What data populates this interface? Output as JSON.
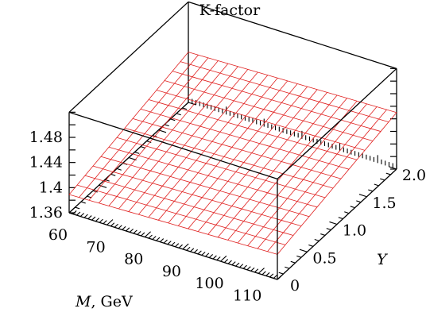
{
  "chart_data": {
    "type": "surface",
    "title": "K-factor",
    "xlabel_var": "M",
    "xlabel_unit": ", GeV",
    "ylabel": "Y",
    "x_ticks": [
      "60",
      "70",
      "80",
      "90",
      "100",
      "110"
    ],
    "y_ticks": [
      "0",
      "0.5",
      "1.0",
      "1.5",
      "2.0"
    ],
    "z_ticks": [
      "1.36",
      "1.4",
      "1.44",
      "1.48"
    ],
    "x_range": [
      60,
      115
    ],
    "y_range": [
      0,
      2.0
    ],
    "z_range": [
      1.36,
      1.52
    ],
    "surface": {
      "grid_x": 21,
      "grid_y": 15,
      "corners": [
        {
          "M": 60,
          "Y": 0,
          "K": 1.389
        },
        {
          "M": 115,
          "Y": 0,
          "K": 1.4
        },
        {
          "M": 60,
          "Y": 2.0,
          "K": 1.44
        },
        {
          "M": 115,
          "Y": 2.0,
          "K": 1.45
        }
      ],
      "color": "#e0201f"
    },
    "box_color": "#000000"
  }
}
